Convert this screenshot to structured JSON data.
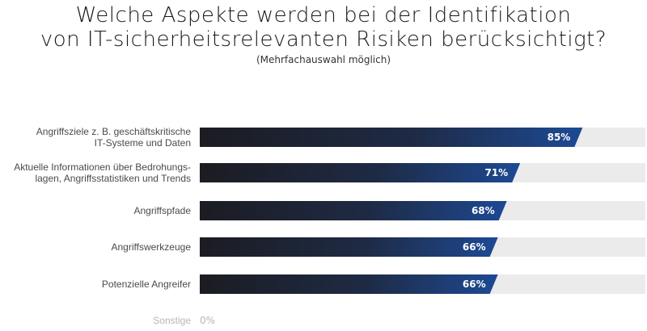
{
  "chart_data": {
    "type": "bar",
    "orientation": "horizontal",
    "title_lines": [
      "Welche Aspekte werden bei der Identifikation",
      "von IT-sicherheitsrelevanten Risiken berücksichtigt?"
    ],
    "subtitle": "(Mehrfachauswahl möglich)",
    "categories": [
      [
        "Angriffsziele z. B. geschäftskritische",
        "IT-Systeme und Daten"
      ],
      [
        "Aktuelle Informationen über Bedrohungs-",
        "lagen, Angriffsstatistiken und Trends"
      ],
      [
        "Angriffspfade"
      ],
      [
        "Angriffswerkzeuge"
      ],
      [
        "Potenzielle Angreifer"
      ],
      [
        "Sonstige"
      ]
    ],
    "values": [
      85,
      71,
      68,
      66,
      66,
      0
    ],
    "value_labels": [
      "85%",
      "71%",
      "68%",
      "66%",
      "66%",
      "0%"
    ],
    "xlim": [
      0,
      100
    ],
    "grid": false,
    "legend": "none",
    "colors": {
      "bar_start": "#1c1c22",
      "bar_end": "#1d4a94",
      "track": "#ebebeb",
      "muted_text": "#b5b5b5"
    }
  }
}
